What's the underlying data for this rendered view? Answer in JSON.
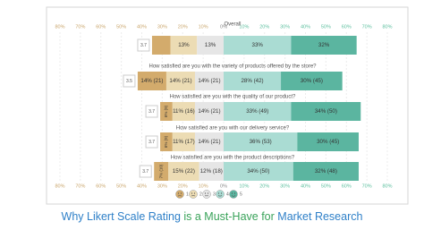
{
  "chart_data": {
    "type": "diverging_bar",
    "categories": [
      "Overall",
      "How satisfied are you with the variety of products offered by the store?",
      "How satisfied are you with the quality of our product?",
      "How satisfied are you with our delivery service?",
      "How satisfied are you with the product descriptions?"
    ],
    "means": [
      "3.7",
      "3.5",
      "3.7",
      "3.7",
      "3.7"
    ],
    "series": [
      {
        "name": "1",
        "color": "#d3ab6c",
        "values": [
          9,
          14,
          6,
          6,
          7
        ],
        "value_labels": [
          null,
          "14% (21)",
          "6% (9)",
          "6% (9)",
          "7% (10)"
        ]
      },
      {
        "name": "2",
        "color": "#ecdcb4",
        "values": [
          13,
          14,
          11,
          11,
          15
        ],
        "value_labels": [
          "13%",
          "14% (21)",
          "11% (16)",
          "11% (17)",
          "15% (22)"
        ]
      },
      {
        "name": "3",
        "color": "#e6e6e6",
        "values": [
          13,
          14,
          14,
          14,
          12
        ],
        "value_labels": [
          "13%",
          "14% (21)",
          "14% (21)",
          "14% (21)",
          "12% (18)"
        ]
      },
      {
        "name": "4",
        "color": "#aadcd3",
        "values": [
          33,
          28,
          33,
          36,
          34
        ],
        "value_labels": [
          "33%",
          "28% (42)",
          "33% (49)",
          "36% (53)",
          "34% (50)"
        ]
      },
      {
        "name": "5",
        "color": "#5bb5a0",
        "values": [
          32,
          30,
          34,
          30,
          32
        ],
        "value_labels": [
          "32%",
          "30% (45)",
          "34% (50)",
          "30% (45)",
          "32% (48)"
        ]
      }
    ],
    "xlim": [
      -80,
      80
    ],
    "xticks": [
      {
        "value": -80,
        "label": "80%"
      },
      {
        "value": -70,
        "label": "70%"
      },
      {
        "value": -60,
        "label": "60%"
      },
      {
        "value": -50,
        "label": "50%"
      },
      {
        "value": -40,
        "label": "40%"
      },
      {
        "value": -30,
        "label": "30%"
      },
      {
        "value": -20,
        "label": "20%"
      },
      {
        "value": -10,
        "label": "10%"
      },
      {
        "value": 0,
        "label": "0%"
      },
      {
        "value": 10,
        "label": "10%"
      },
      {
        "value": 20,
        "label": "20%"
      },
      {
        "value": 30,
        "label": "30%"
      },
      {
        "value": 40,
        "label": "40%"
      },
      {
        "value": 50,
        "label": "50%"
      },
      {
        "value": 60,
        "label": "60%"
      },
      {
        "value": 70,
        "label": "70%"
      },
      {
        "value": 80,
        "label": "80%"
      }
    ],
    "negative_tick_color": "#c9a56b",
    "positive_tick_color": "#5cbf9e",
    "grid": true
  },
  "caption": {
    "parts": [
      {
        "text": "Why Likert Scale Rating",
        "color": "#2f80c8"
      },
      {
        "text": " is a Must-Have for ",
        "color": "#3aa35a"
      },
      {
        "text": "Market Research",
        "color": "#2f80c8"
      }
    ]
  }
}
